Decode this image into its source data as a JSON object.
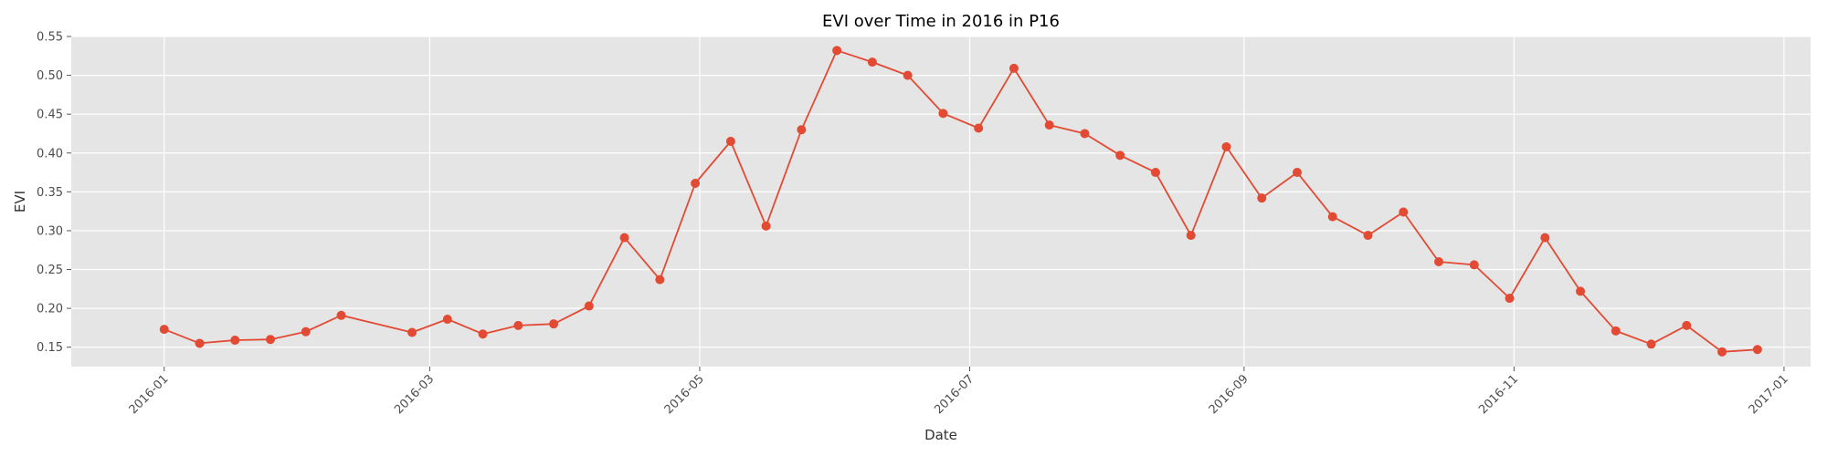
{
  "chart_data": {
    "type": "line",
    "title": "EVI over Time in 2016 in P16",
    "xlabel": "Date",
    "ylabel": "EVI",
    "x_axis": "date",
    "xlim": [
      "2015-12-11",
      "2017-01-07"
    ],
    "ylim": [
      0.125,
      0.55
    ],
    "x_ticks": [
      "2016-01-01",
      "2016-03-01",
      "2016-05-01",
      "2016-07-01",
      "2016-09-01",
      "2016-11-01",
      "2017-01-01"
    ],
    "x_tick_labels": [
      "2016-01",
      "2016-03",
      "2016-05",
      "2016-07",
      "2016-09",
      "2016-11",
      "2017-01"
    ],
    "y_ticks": [
      0.15,
      0.2,
      0.25,
      0.3,
      0.35,
      0.4,
      0.45,
      0.5,
      0.55
    ],
    "y_tick_labels": [
      "0.15",
      "0.20",
      "0.25",
      "0.30",
      "0.35",
      "0.40",
      "0.45",
      "0.50",
      "0.55"
    ],
    "grid": true,
    "series": [
      {
        "color": "#e24a33",
        "marker": "circle",
        "x": [
          "2016-01-01",
          "2016-01-09",
          "2016-01-17",
          "2016-01-25",
          "2016-02-02",
          "2016-02-10",
          "2016-02-26",
          "2016-03-05",
          "2016-03-13",
          "2016-03-21",
          "2016-03-29",
          "2016-04-06",
          "2016-04-14",
          "2016-04-22",
          "2016-04-30",
          "2016-05-08",
          "2016-05-16",
          "2016-05-24",
          "2016-06-01",
          "2016-06-09",
          "2016-06-17",
          "2016-06-25",
          "2016-07-03",
          "2016-07-11",
          "2016-07-19",
          "2016-07-27",
          "2016-08-04",
          "2016-08-12",
          "2016-08-20",
          "2016-08-28",
          "2016-09-05",
          "2016-09-13",
          "2016-09-21",
          "2016-09-29",
          "2016-10-07",
          "2016-10-15",
          "2016-10-23",
          "2016-10-31",
          "2016-11-08",
          "2016-11-16",
          "2016-11-24",
          "2016-12-02",
          "2016-12-10",
          "2016-12-18",
          "2016-12-26"
        ],
        "y": [
          0.173,
          0.155,
          0.159,
          0.16,
          0.17,
          0.191,
          0.169,
          0.186,
          0.167,
          0.178,
          0.18,
          0.203,
          0.291,
          0.237,
          0.361,
          0.415,
          0.306,
          0.43,
          0.532,
          0.517,
          0.5,
          0.451,
          0.432,
          0.509,
          0.436,
          0.425,
          0.397,
          0.375,
          0.294,
          0.408,
          0.342,
          0.375,
          0.318,
          0.294,
          0.324,
          0.26,
          0.256,
          0.213,
          0.291,
          0.222,
          0.171,
          0.154,
          0.178,
          0.144,
          0.147
        ]
      }
    ]
  }
}
